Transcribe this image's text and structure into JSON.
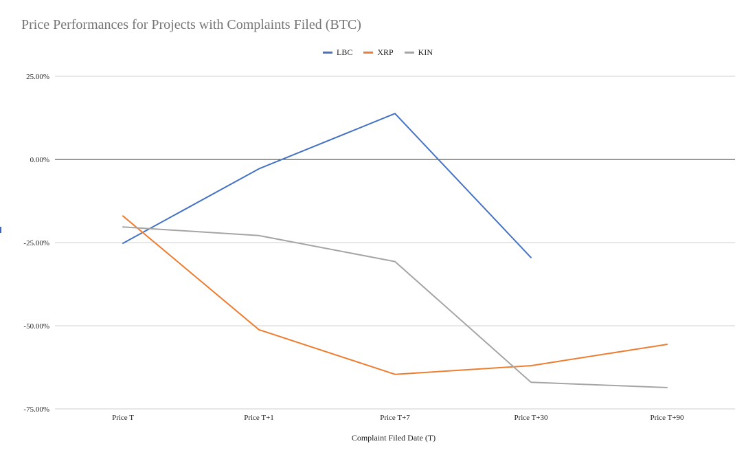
{
  "chart_data": {
    "type": "line",
    "title": "Price Performances for Projects with Complaints Filed (BTC)",
    "xlabel": "Complaint Filed Date (T)",
    "ylabel": "",
    "categories": [
      "Price T",
      "Price T+1",
      "Price T+7",
      "Price T+30",
      "Price T+90"
    ],
    "ylim": [
      -75,
      25
    ],
    "yticks": [
      25,
      0,
      -25,
      -50,
      -75
    ],
    "ytick_labels": [
      "25.00%",
      "0.00%",
      "-25.00%",
      "-50.00%",
      "-75.00%"
    ],
    "grid": true,
    "legend_position": "top-center",
    "series": [
      {
        "name": "LBC",
        "color": "#4472c4",
        "values": [
          -25.2,
          -2.8,
          13.8,
          -29.5,
          null
        ]
      },
      {
        "name": "XRP",
        "color": "#ed7d31",
        "values": [
          -17.0,
          -51.2,
          -64.6,
          -62.0,
          -55.6
        ]
      },
      {
        "name": "KIN",
        "color": "#a5a5a5",
        "values": [
          -20.3,
          -22.9,
          -30.7,
          -67.0,
          -68.6
        ]
      }
    ]
  }
}
